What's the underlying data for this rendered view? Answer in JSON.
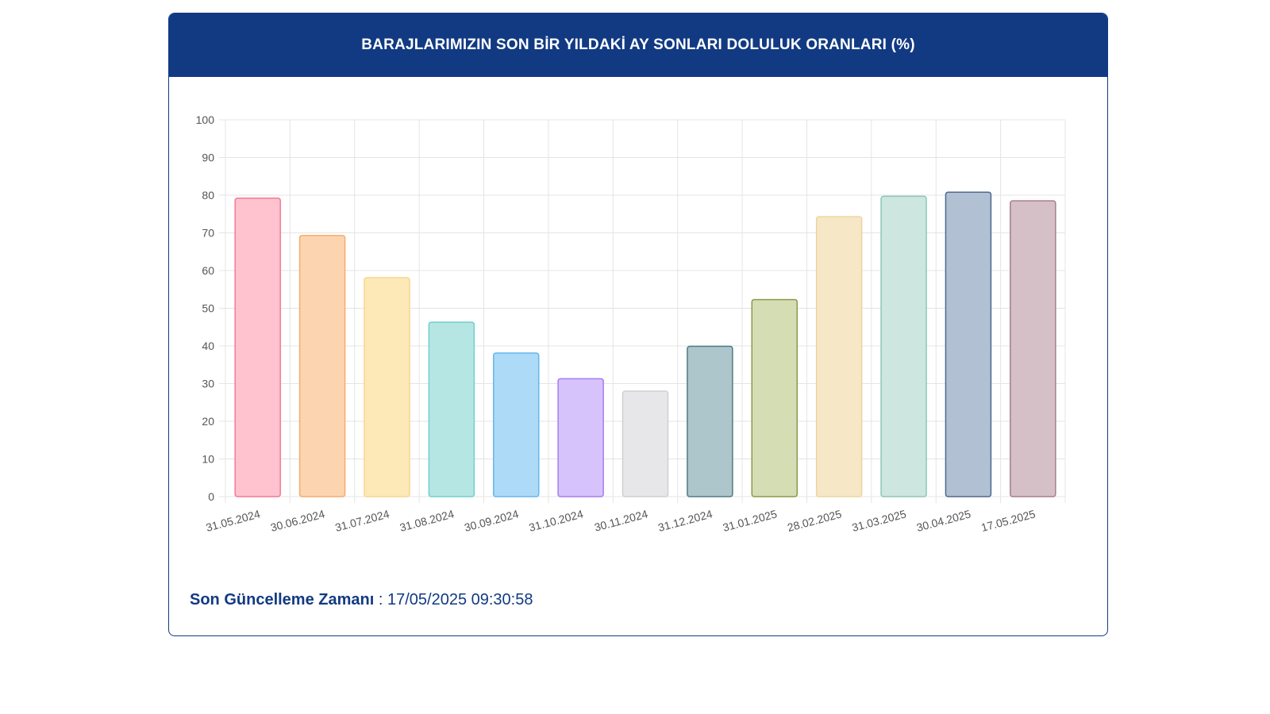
{
  "title": "BARAJLARIMIZIN SON BİR YILDAKİ AY SONLARI DOLULUK ORANLARI (%)",
  "footer": {
    "label": "Son Güncelleme Zamanı",
    "separator": " : ",
    "value": "17/05/2025 09:30:58"
  },
  "colors": {
    "header": "#123a82",
    "grid": "#e4e4e4",
    "tick_text": "#555555"
  },
  "chart_data": {
    "type": "bar",
    "title": "BARAJLARIMIZIN SON BİR YILDAKİ AY SONLARI DOLULUK ORANLARI (%)",
    "xlabel": "",
    "ylabel": "",
    "ylim": [
      0,
      100
    ],
    "yticks": [
      0,
      10,
      20,
      30,
      40,
      50,
      60,
      70,
      80,
      90,
      100
    ],
    "grid": true,
    "legend": "none",
    "categories": [
      "31.05.2024",
      "30.06.2024",
      "31.07.2024",
      "31.08.2024",
      "30.09.2024",
      "31.10.2024",
      "30.11.2024",
      "31.12.2024",
      "31.01.2025",
      "28.02.2025",
      "31.03.2025",
      "30.04.2025",
      "17.05.2025"
    ],
    "values": [
      79.2,
      69.3,
      58.1,
      46.3,
      38.1,
      31.3,
      28.0,
      39.9,
      52.3,
      74.3,
      79.7,
      80.8,
      78.5
    ],
    "bar_fill": [
      "#ffc2cf",
      "#fdd4b0",
      "#fde8b7",
      "#b6e6e3",
      "#addaf7",
      "#d7c3fb",
      "#e7e7e9",
      "#adc6cb",
      "#d5ddb5",
      "#f6e7c7",
      "#cde6df",
      "#b1c0d3",
      "#d6c0c8"
    ],
    "bar_stroke": [
      "#f27a93",
      "#f6ab6a",
      "#f8d68b",
      "#6fcfcc",
      "#67b6ee",
      "#a57cf0",
      "#cfcfd3",
      "#4f7b85",
      "#8a9a4a",
      "#ecd59f",
      "#8cc8b7",
      "#50688d",
      "#a77d8c"
    ]
  }
}
